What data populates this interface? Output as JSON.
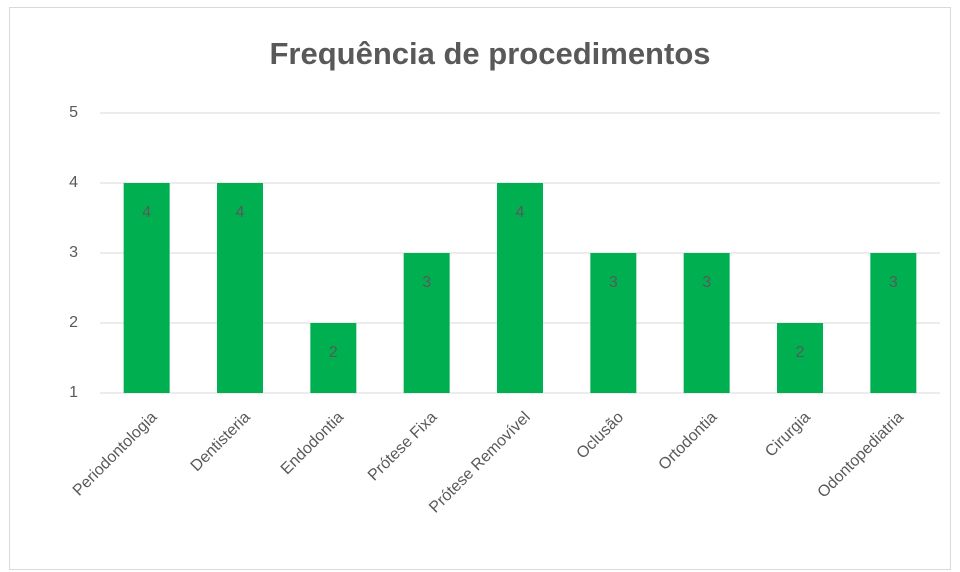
{
  "chart_data": {
    "type": "bar",
    "title": "Frequência de procedimentos",
    "categories": [
      "Periodontologia",
      "Dentisteria",
      "Endodontia",
      "Prótese Fixa",
      "Prótese Removível",
      "Oclusão",
      "Ortodontia",
      "Cirurgia",
      "Odontopediatria"
    ],
    "values": [
      4,
      4,
      2,
      3,
      4,
      3,
      3,
      2,
      3
    ],
    "color": "#00b050",
    "ylim": [
      1,
      5
    ],
    "yticks": [
      1,
      2,
      3,
      4,
      5
    ],
    "grid": true,
    "data_labels": true
  }
}
